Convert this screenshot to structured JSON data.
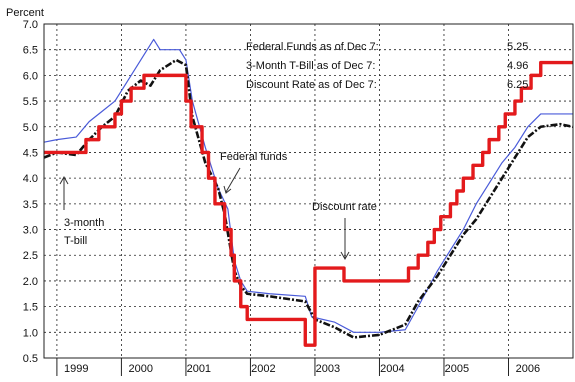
{
  "chart_data": {
    "type": "line",
    "ylabel": "Percent",
    "ylim": [
      0.5,
      7.0
    ],
    "yticks": [
      0.5,
      1.0,
      1.5,
      2.0,
      2.5,
      3.0,
      3.5,
      4.0,
      4.5,
      5.0,
      5.5,
      6.0,
      6.5,
      7.0
    ],
    "ytick_labels": [
      "0.5",
      "1.0",
      "1.5",
      "2.0",
      "2.5",
      "3.0",
      "3.5",
      "4.0",
      "4.5",
      "5.0",
      "5.5",
      "6.0",
      "6.5",
      "7.0"
    ],
    "xlim": [
      1998.8,
      2007.0
    ],
    "year_boundaries": [
      1999,
      2000,
      2001,
      2002,
      2003,
      2004,
      2005,
      2006
    ],
    "year_labels": [
      {
        "x": 1999.3,
        "label": "1999"
      },
      {
        "x": 2000.3,
        "label": "2000"
      },
      {
        "x": 2001.2,
        "label": "2001"
      },
      {
        "x": 2002.2,
        "label": "2002"
      },
      {
        "x": 2003.2,
        "label": "2003"
      },
      {
        "x": 2004.2,
        "label": "2004"
      },
      {
        "x": 2005.2,
        "label": "2005"
      },
      {
        "x": 2006.3,
        "label": "2006"
      }
    ],
    "grid": true,
    "info_box": [
      {
        "label": "Federal Funds as of Dec 7:",
        "value": "5.25"
      },
      {
        "label": "3-Month T-Bill as of Dec 7:",
        "value": "4.96"
      },
      {
        "label": "Discount Rate as of Dec 7:",
        "value": "6.25"
      }
    ],
    "annotations": {
      "federal_funds": "Federal funds",
      "discount_rate": "Discount rate",
      "tbill_line1": "3-month",
      "tbill_line2": "T-bill"
    },
    "series": [
      {
        "key": "discount",
        "color": "#e31a1c",
        "step": true,
        "points": [
          [
            1998.8,
            4.5
          ],
          [
            1999.45,
            4.75
          ],
          [
            1999.65,
            5.0
          ],
          [
            1999.9,
            5.25
          ],
          [
            2000.0,
            5.5
          ],
          [
            2000.15,
            5.75
          ],
          [
            2000.35,
            6.0
          ],
          [
            2001.0,
            5.5
          ],
          [
            2001.08,
            5.0
          ],
          [
            2001.25,
            4.5
          ],
          [
            2001.35,
            4.0
          ],
          [
            2001.45,
            3.5
          ],
          [
            2001.6,
            3.0
          ],
          [
            2001.7,
            2.5
          ],
          [
            2001.75,
            2.0
          ],
          [
            2001.85,
            1.5
          ],
          [
            2001.95,
            1.25
          ],
          [
            2002.85,
            0.75
          ],
          [
            2003.0,
            2.25
          ],
          [
            2003.45,
            2.0
          ],
          [
            2004.45,
            2.25
          ],
          [
            2004.6,
            2.5
          ],
          [
            2004.75,
            2.75
          ],
          [
            2004.85,
            3.0
          ],
          [
            2004.95,
            3.25
          ],
          [
            2005.1,
            3.5
          ],
          [
            2005.2,
            3.75
          ],
          [
            2005.3,
            4.0
          ],
          [
            2005.45,
            4.25
          ],
          [
            2005.6,
            4.5
          ],
          [
            2005.7,
            4.75
          ],
          [
            2005.85,
            5.0
          ],
          [
            2005.95,
            5.25
          ],
          [
            2006.1,
            5.5
          ],
          [
            2006.2,
            5.75
          ],
          [
            2006.35,
            6.0
          ],
          [
            2006.5,
            6.25
          ],
          [
            2007.0,
            6.25
          ]
        ]
      },
      {
        "key": "fedfunds",
        "color": "#4a5bd9",
        "step": false,
        "points": [
          [
            1998.8,
            4.7
          ],
          [
            1999.0,
            4.75
          ],
          [
            1999.3,
            4.8
          ],
          [
            1999.5,
            5.1
          ],
          [
            1999.7,
            5.3
          ],
          [
            1999.9,
            5.5
          ],
          [
            2000.1,
            5.9
          ],
          [
            2000.4,
            6.5
          ],
          [
            2000.5,
            6.7
          ],
          [
            2000.6,
            6.5
          ],
          [
            2000.9,
            6.5
          ],
          [
            2001.0,
            6.3
          ],
          [
            2001.1,
            5.5
          ],
          [
            2001.3,
            4.6
          ],
          [
            2001.5,
            3.8
          ],
          [
            2001.65,
            3.4
          ],
          [
            2001.75,
            2.4
          ],
          [
            2001.85,
            2.0
          ],
          [
            2001.95,
            1.8
          ],
          [
            2002.3,
            1.75
          ],
          [
            2002.85,
            1.7
          ],
          [
            2002.95,
            1.3
          ],
          [
            2003.3,
            1.2
          ],
          [
            2003.6,
            1.0
          ],
          [
            2004.0,
            1.0
          ],
          [
            2004.4,
            1.05
          ],
          [
            2004.6,
            1.5
          ],
          [
            2004.9,
            2.2
          ],
          [
            2005.1,
            2.6
          ],
          [
            2005.3,
            3.0
          ],
          [
            2005.5,
            3.5
          ],
          [
            2005.7,
            3.9
          ],
          [
            2005.9,
            4.3
          ],
          [
            2006.1,
            4.6
          ],
          [
            2006.3,
            5.0
          ],
          [
            2006.5,
            5.25
          ],
          [
            2007.0,
            5.25
          ]
        ]
      },
      {
        "key": "tbill",
        "color": "#111111",
        "step": false,
        "points": [
          [
            1998.8,
            4.4
          ],
          [
            1999.0,
            4.5
          ],
          [
            1999.3,
            4.45
          ],
          [
            1999.5,
            4.75
          ],
          [
            1999.7,
            5.0
          ],
          [
            1999.9,
            5.2
          ],
          [
            2000.1,
            5.7
          ],
          [
            2000.3,
            5.9
          ],
          [
            2000.45,
            5.8
          ],
          [
            2000.6,
            6.1
          ],
          [
            2000.85,
            6.3
          ],
          [
            2001.0,
            6.2
          ],
          [
            2001.1,
            5.2
          ],
          [
            2001.3,
            4.3
          ],
          [
            2001.5,
            3.8
          ],
          [
            2001.6,
            3.3
          ],
          [
            2001.75,
            2.2
          ],
          [
            2001.85,
            1.9
          ],
          [
            2001.95,
            1.75
          ],
          [
            2002.3,
            1.7
          ],
          [
            2002.85,
            1.6
          ],
          [
            2003.0,
            1.25
          ],
          [
            2003.3,
            1.1
          ],
          [
            2003.6,
            0.9
          ],
          [
            2004.0,
            0.95
          ],
          [
            2004.4,
            1.15
          ],
          [
            2004.6,
            1.6
          ],
          [
            2004.9,
            2.1
          ],
          [
            2005.1,
            2.5
          ],
          [
            2005.3,
            2.9
          ],
          [
            2005.5,
            3.2
          ],
          [
            2005.7,
            3.6
          ],
          [
            2005.9,
            4.0
          ],
          [
            2006.1,
            4.4
          ],
          [
            2006.3,
            4.8
          ],
          [
            2006.5,
            5.0
          ],
          [
            2006.8,
            5.05
          ],
          [
            2007.0,
            5.0
          ]
        ]
      }
    ]
  }
}
